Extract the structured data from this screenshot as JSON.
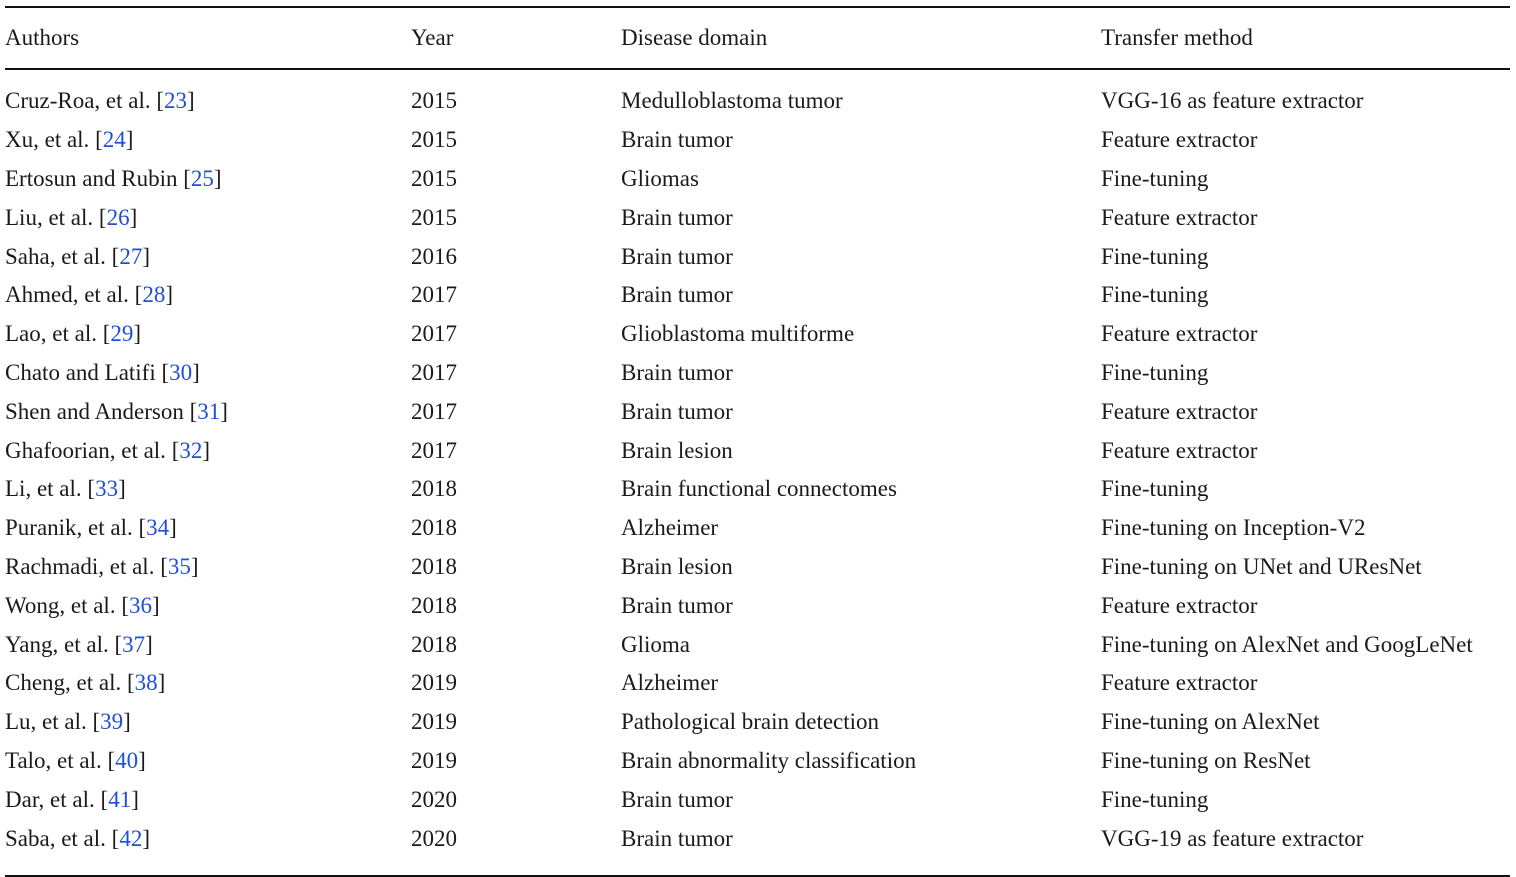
{
  "table": {
    "headers": {
      "authors": "Authors",
      "year": "Year",
      "domain": "Disease domain",
      "method": "Transfer method"
    },
    "rows": [
      {
        "author": "Cruz-Roa, et al.",
        "ref": "23",
        "year": "2015",
        "domain": "Medulloblastoma tumor",
        "method": "VGG-16 as feature extractor"
      },
      {
        "author": "Xu, et al.",
        "ref": "24",
        "year": "2015",
        "domain": "Brain tumor",
        "method": "Feature extractor"
      },
      {
        "author": "Ertosun and Rubin",
        "ref": "25",
        "year": "2015",
        "domain": "Gliomas",
        "method": "Fine-tuning"
      },
      {
        "author": "Liu, et al.",
        "ref": "26",
        "year": "2015",
        "domain": "Brain tumor",
        "method": "Feature extractor"
      },
      {
        "author": "Saha, et al.",
        "ref": "27",
        "year": "2016",
        "domain": "Brain tumor",
        "method": "Fine-tuning"
      },
      {
        "author": "Ahmed, et al.",
        "ref": "28",
        "year": "2017",
        "domain": "Brain tumor",
        "method": "Fine-tuning"
      },
      {
        "author": "Lao, et al.",
        "ref": "29",
        "year": "2017",
        "domain": "Glioblastoma multiforme",
        "method": "Feature extractor"
      },
      {
        "author": "Chato and Latifi",
        "ref": "30",
        "year": "2017",
        "domain": "Brain tumor",
        "method": "Fine-tuning"
      },
      {
        "author": "Shen and Anderson",
        "ref": "31",
        "year": "2017",
        "domain": "Brain tumor",
        "method": "Feature extractor"
      },
      {
        "author": "Ghafoorian, et al.",
        "ref": "32",
        "year": "2017",
        "domain": "Brain lesion",
        "method": "Feature extractor"
      },
      {
        "author": "Li, et al.",
        "ref": "33",
        "year": "2018",
        "domain": "Brain functional connectomes",
        "method": "Fine-tuning"
      },
      {
        "author": "Puranik, et al.",
        "ref": "34",
        "year": "2018",
        "domain": "Alzheimer",
        "method": "Fine-tuning on Inception-V2"
      },
      {
        "author": "Rachmadi, et al.",
        "ref": "35",
        "year": "2018",
        "domain": "Brain lesion",
        "method": "Fine-tuning on UNet and UResNet"
      },
      {
        "author": "Wong, et al.",
        "ref": "36",
        "year": "2018",
        "domain": "Brain tumor",
        "method": "Feature extractor"
      },
      {
        "author": "Yang, et al.",
        "ref": "37",
        "year": "2018",
        "domain": "Glioma",
        "method": "Fine-tuning on AlexNet and GoogLeNet"
      },
      {
        "author": "Cheng, et al.",
        "ref": "38",
        "year": "2019",
        "domain": "Alzheimer",
        "method": "Feature extractor"
      },
      {
        "author": "Lu, et al.",
        "ref": "39",
        "year": "2019",
        "domain": "Pathological brain detection",
        "method": "Fine-tuning on AlexNet"
      },
      {
        "author": "Talo, et al.",
        "ref": "40",
        "year": "2019",
        "domain": "Brain abnormality classification",
        "method": "Fine-tuning on ResNet"
      },
      {
        "author": "Dar, et al.",
        "ref": "41",
        "year": "2020",
        "domain": "Brain tumor",
        "method": "Fine-tuning"
      },
      {
        "author": "Saba, et al.",
        "ref": "42",
        "year": "2020",
        "domain": "Brain tumor",
        "method": "VGG-19 as feature extractor"
      }
    ]
  }
}
